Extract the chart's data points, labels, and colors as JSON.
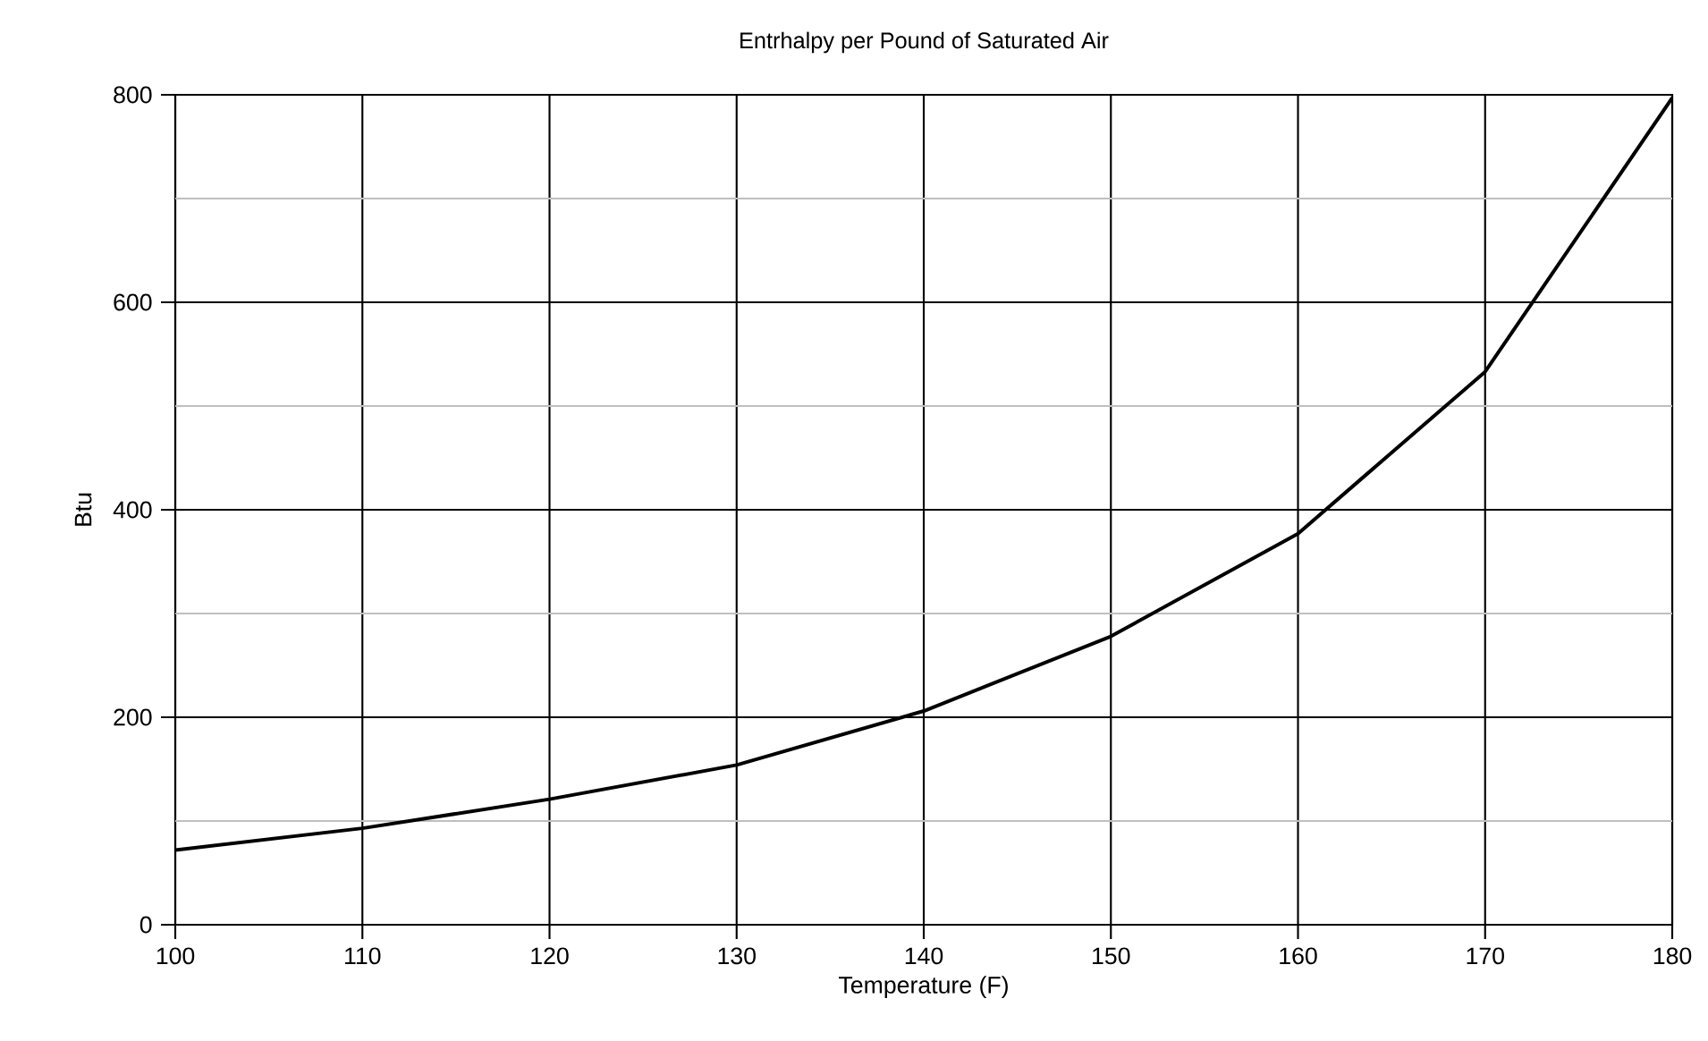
{
  "chart_data": {
    "type": "line",
    "title": "Entrhalpy per Pound of Saturated Air",
    "xlabel": "Temperature (F)",
    "ylabel": "Btu",
    "x": [
      100,
      110,
      120,
      130,
      140,
      150,
      160,
      170,
      180
    ],
    "series": [
      {
        "color": "#000000",
        "values": [
          72,
          93,
          121,
          154,
          206,
          278,
          377,
          533,
          797
        ]
      }
    ],
    "xlim": [
      100,
      180
    ],
    "xticks": [
      100,
      110,
      120,
      130,
      140,
      150,
      160,
      170,
      180
    ],
    "ylim": [
      0,
      800
    ],
    "yticks": [
      0,
      {
        "value": 100,
        "label": null
      },
      200,
      {
        "value": 300,
        "label": null
      },
      400,
      {
        "value": 500,
        "label": null
      },
      600,
      {
        "value": 700,
        "label": null
      },
      800
    ],
    "grid": true,
    "marker": "none",
    "line_style": "solid"
  }
}
